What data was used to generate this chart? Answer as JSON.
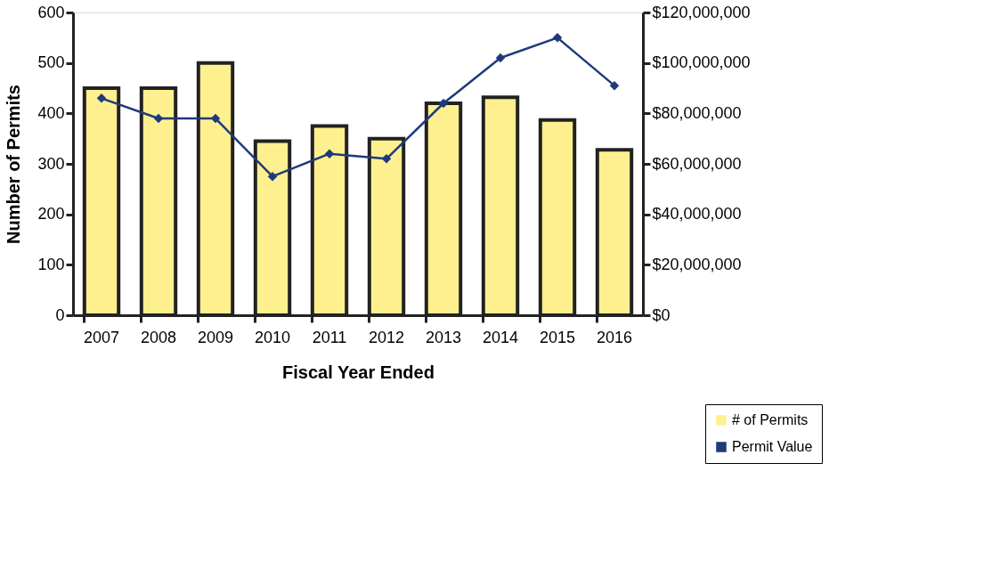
{
  "chart_data": {
    "type": "bar",
    "categories": [
      "2007",
      "2008",
      "2009",
      "2010",
      "2011",
      "2012",
      "2013",
      "2014",
      "2015",
      "2016"
    ],
    "series": [
      {
        "name": "# of Permits",
        "color": "#fff08f",
        "values": [
          450,
          450,
          500,
          345,
          375,
          350,
          420,
          432,
          387,
          328
        ]
      },
      {
        "name": "Permit Value",
        "type": "line",
        "axis": "y2",
        "color": "#1f3a7a",
        "marker": "diamond",
        "values": [
          86000000,
          78000000,
          78000000,
          55000000,
          64000000,
          62000000,
          84000000,
          102000000,
          110000000,
          91000000
        ]
      }
    ],
    "xlabel": "Fiscal Year Ended",
    "ylabel": "Number of Permits",
    "ylim": [
      0,
      600
    ],
    "yticks": [
      0,
      100,
      200,
      300,
      400,
      500,
      600
    ],
    "y2lim": [
      0,
      120000000
    ],
    "y2ticks": [
      {
        "value": 0,
        "label": "$0"
      },
      {
        "value": 20000000,
        "label": "$20,000,000"
      },
      {
        "value": 40000000,
        "label": "$40,000,000"
      },
      {
        "value": 60000000,
        "label": "$60,000,000"
      },
      {
        "value": 80000000,
        "label": "$80,000,000"
      },
      {
        "value": 100000000,
        "label": "$100,000,000"
      },
      {
        "value": 120000000,
        "label": "$120,000,000"
      }
    ],
    "legend": "bottom right",
    "grid": false
  }
}
